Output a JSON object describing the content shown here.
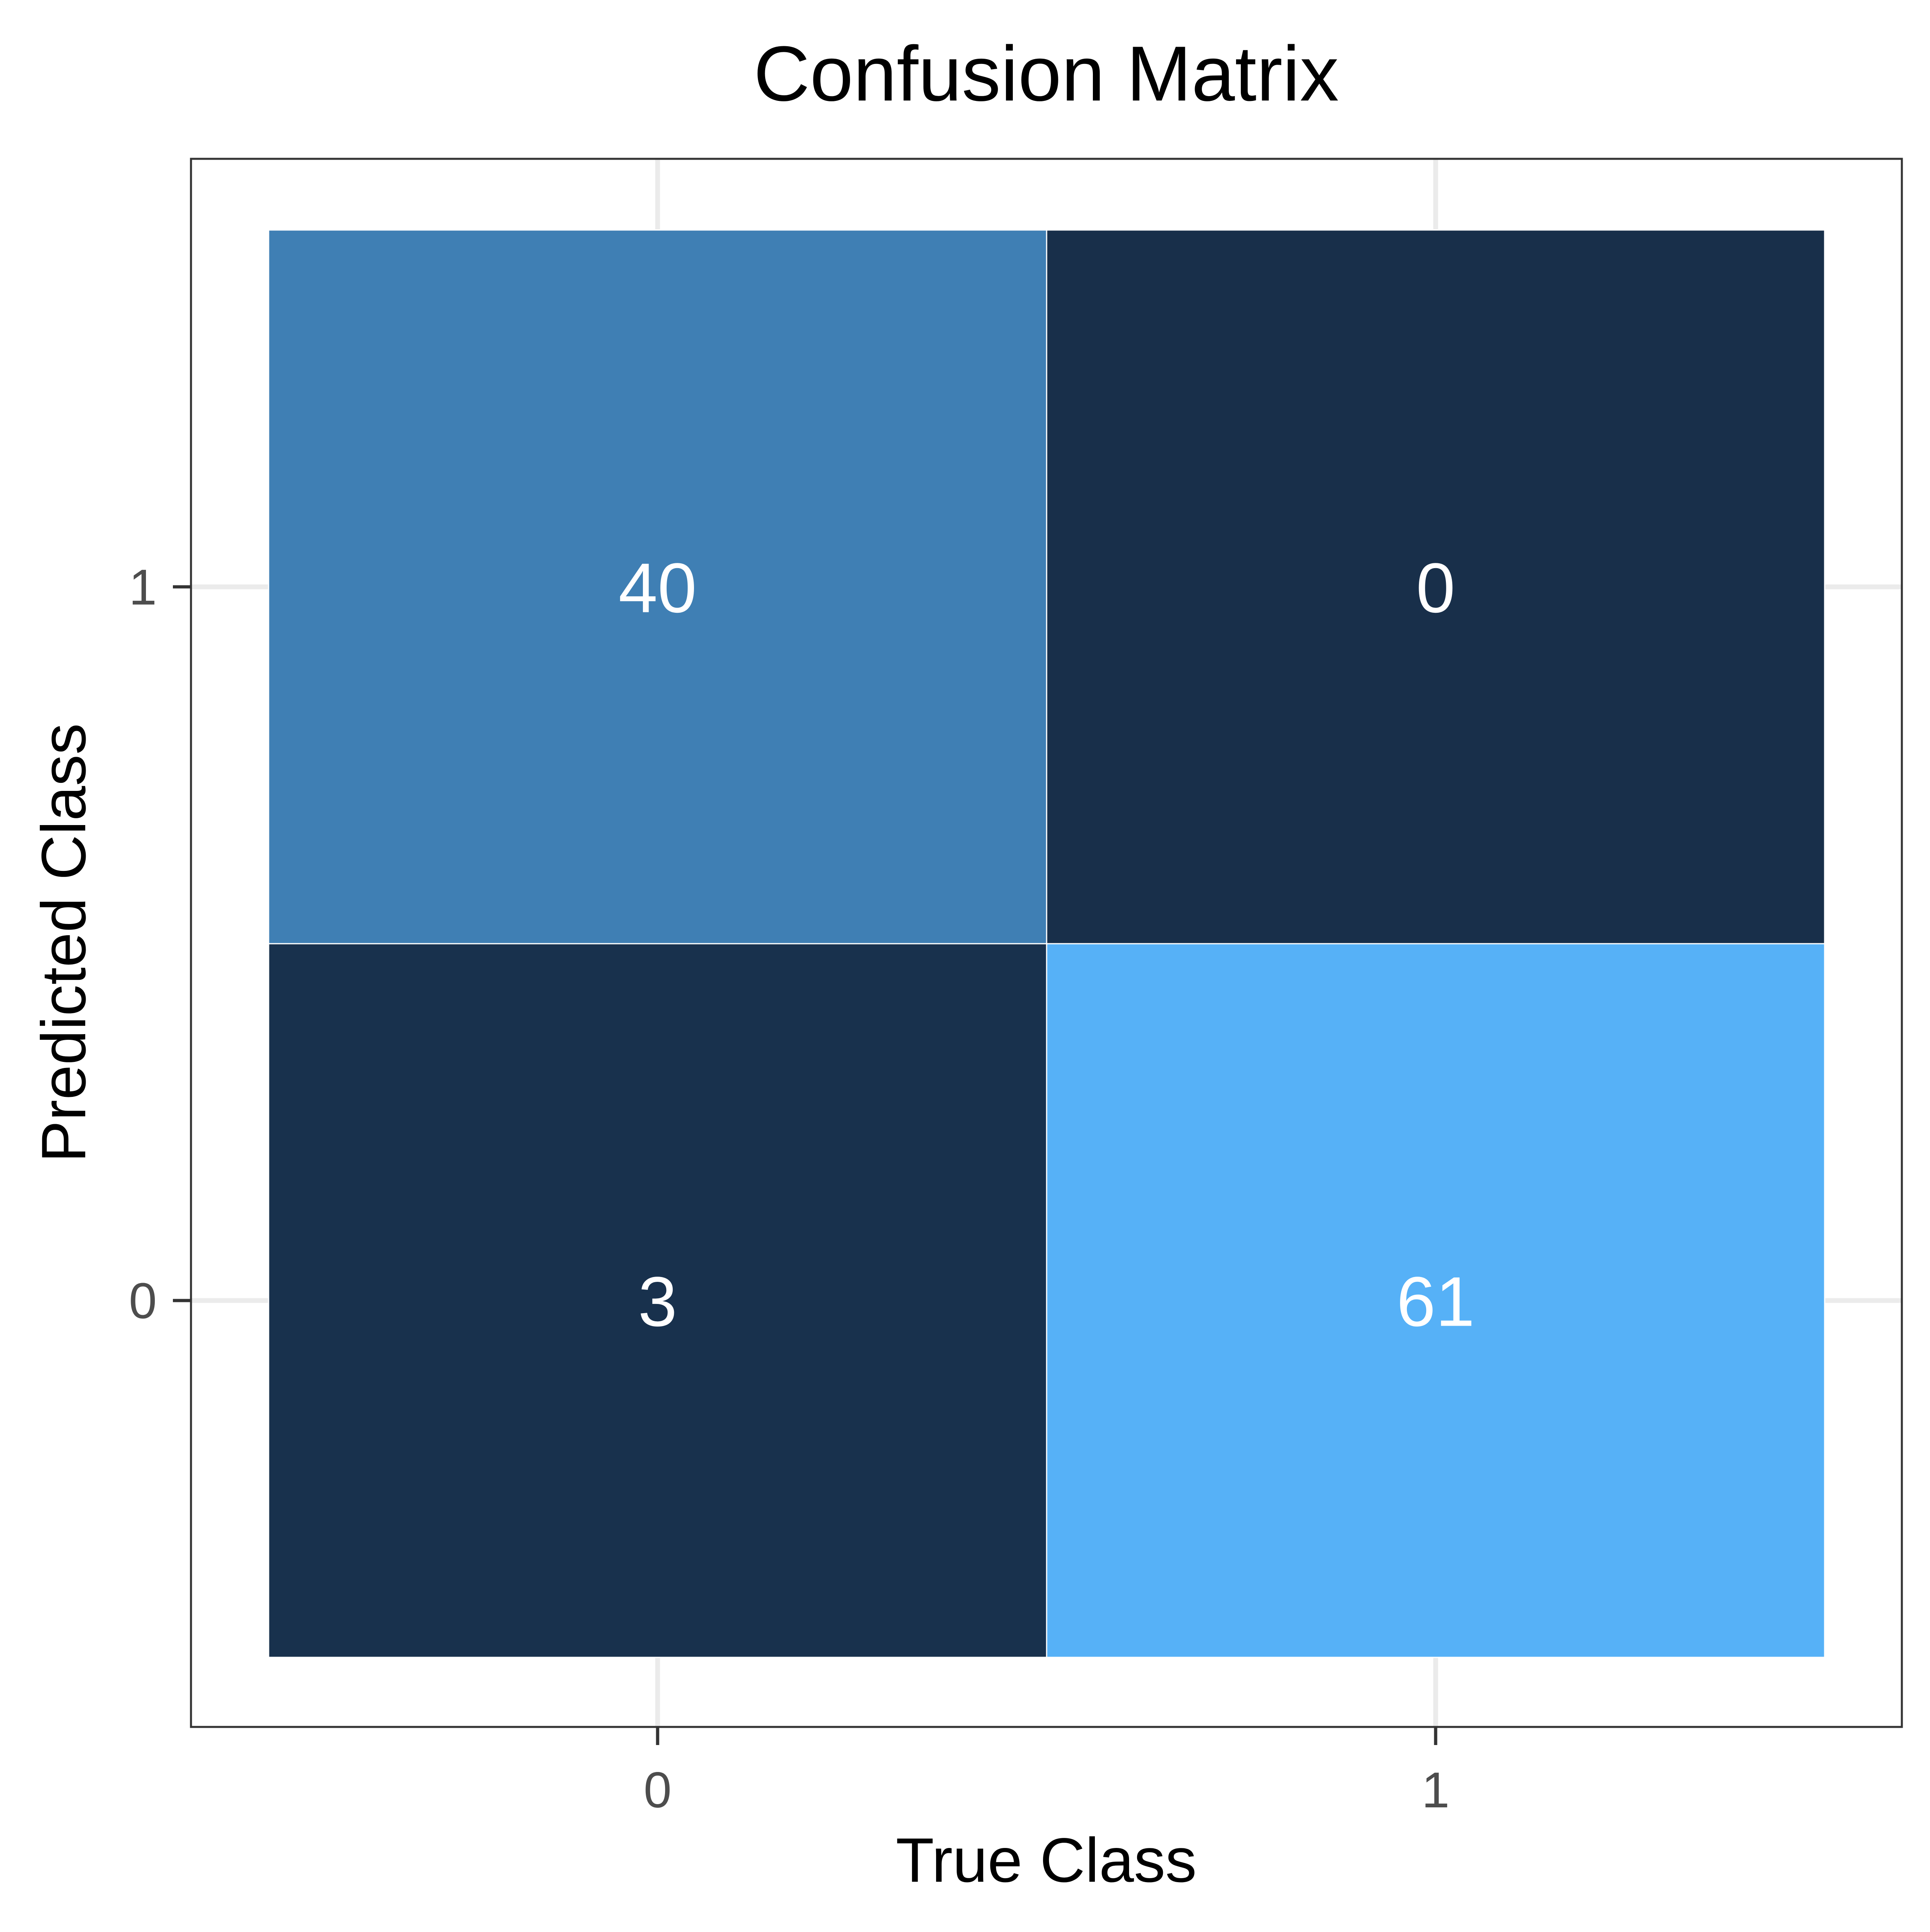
{
  "chart_data": {
    "type": "heatmap",
    "title": "Confusion Matrix",
    "xlabel": "True Class",
    "ylabel": "Predicted Class",
    "x_categories": [
      "0",
      "1"
    ],
    "y_categories": [
      "0",
      "1"
    ],
    "cells": [
      {
        "x": "0",
        "y": "1",
        "value": 40,
        "label": "40",
        "color": "#3f7fb4"
      },
      {
        "x": "1",
        "y": "1",
        "value": 0,
        "label": "0",
        "color": "#182f4a"
      },
      {
        "x": "0",
        "y": "0",
        "value": 3,
        "label": "3",
        "color": "#18314d"
      },
      {
        "x": "1",
        "y": "0",
        "value": 61,
        "label": "61",
        "color": "#56b1f7"
      }
    ],
    "grid": true,
    "legend": "none",
    "colors": {
      "panel_border": "#333333",
      "grid": "#ebebeb",
      "tick": "#333333"
    }
  }
}
